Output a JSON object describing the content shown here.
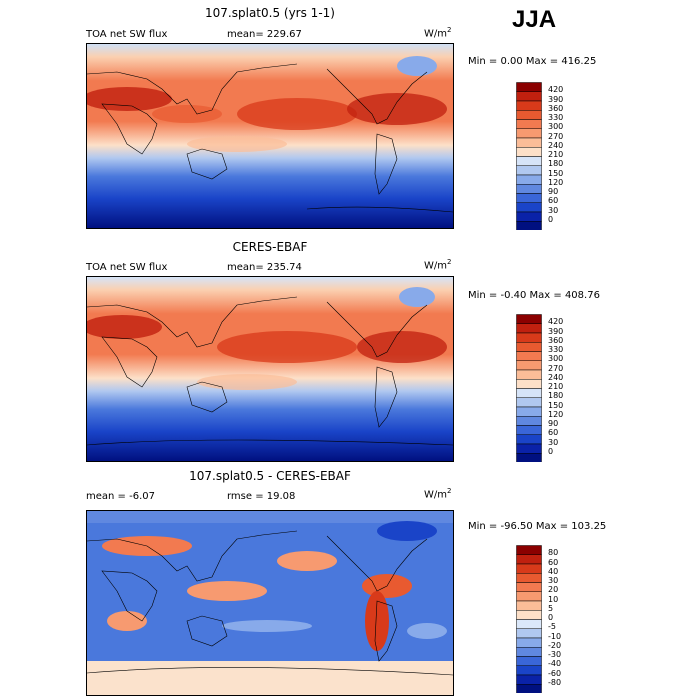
{
  "season": "JJA",
  "panels": [
    {
      "title": "107.splat0.5 (yrs 1-1)",
      "left_label": "TOA net SW flux",
      "mid_label": "mean=  229.67",
      "units": "W/m",
      "units_sup": "2",
      "minmax": "Min =   0.00 Max = 416.25",
      "levels": [
        "420",
        "390",
        "360",
        "330",
        "300",
        "270",
        "240",
        "210",
        "180",
        "150",
        "120",
        "90",
        "60",
        "30",
        "0"
      ],
      "colors": [
        "#8b0000",
        "#c0200f",
        "#d83a1a",
        "#e85a30",
        "#f27a50",
        "#f79a70",
        "#fbbd98",
        "#fde0c8",
        "#d6e4f8",
        "#b0c8f0",
        "#88aaea",
        "#6088e0",
        "#3a66d8",
        "#1a44c8",
        "#0a22a8",
        "#001080"
      ]
    },
    {
      "title": "CERES-EBAF",
      "left_label": "TOA net SW flux",
      "mid_label": "mean= 235.74",
      "units": "W/m",
      "units_sup": "2",
      "minmax": "Min =  -0.40 Max = 408.76",
      "levels": [
        "420",
        "390",
        "360",
        "330",
        "300",
        "270",
        "240",
        "210",
        "180",
        "150",
        "120",
        "90",
        "60",
        "30",
        "0"
      ],
      "colors": [
        "#8b0000",
        "#c0200f",
        "#d83a1a",
        "#e85a30",
        "#f27a50",
        "#f79a70",
        "#fbbd98",
        "#fde0c8",
        "#d6e4f8",
        "#b0c8f0",
        "#88aaea",
        "#6088e0",
        "#3a66d8",
        "#1a44c8",
        "#0a22a8",
        "#001080"
      ]
    },
    {
      "title": "107.splat0.5 - CERES-EBAF",
      "left_label": "mean =   -6.07",
      "mid_label": "rmse =  19.08",
      "units": "W/m",
      "units_sup": "2",
      "minmax": "Min = -96.50 Max = 103.25",
      "levels": [
        "80",
        "60",
        "40",
        "30",
        "20",
        "10",
        "5",
        "0",
        "-5",
        "-10",
        "-20",
        "-30",
        "-40",
        "-60",
        "-80"
      ],
      "colors": [
        "#8b0000",
        "#c0200f",
        "#d83a1a",
        "#e85a30",
        "#f27a50",
        "#f79a70",
        "#fbbd98",
        "#fde0c8",
        "#dbe8fa",
        "#b0c8f0",
        "#88aaea",
        "#6088e0",
        "#3a66d8",
        "#1a44c8",
        "#0a22a8",
        "#001080"
      ]
    }
  ],
  "chart_data": [
    {
      "type": "heatmap",
      "title": "107.splat0.5 (yrs 1-1)",
      "subtitle": "TOA net SW flux",
      "mean": 229.67,
      "min": 0.0,
      "max": 416.25,
      "colorbar_levels": [
        420,
        390,
        360,
        330,
        300,
        270,
        240,
        210,
        180,
        150,
        120,
        90,
        60,
        30,
        0
      ]
    },
    {
      "type": "heatmap",
      "title": "CERES-EBAF",
      "subtitle": "TOA net SW flux",
      "mean": 235.74,
      "min": -0.4,
      "max": 408.76,
      "colorbar_levels": [
        420,
        390,
        360,
        330,
        300,
        270,
        240,
        210,
        180,
        150,
        120,
        90,
        60,
        30,
        0
      ]
    },
    {
      "type": "heatmap",
      "title": "107.splat0.5 - CERES-EBAF",
      "mean": -6.07,
      "rmse": 19.08,
      "min": -96.5,
      "max": 103.25,
      "colorbar_levels": [
        80,
        60,
        40,
        30,
        20,
        10,
        5,
        0,
        -5,
        -10,
        -20,
        -30,
        -40,
        -60,
        -80
      ]
    }
  ]
}
